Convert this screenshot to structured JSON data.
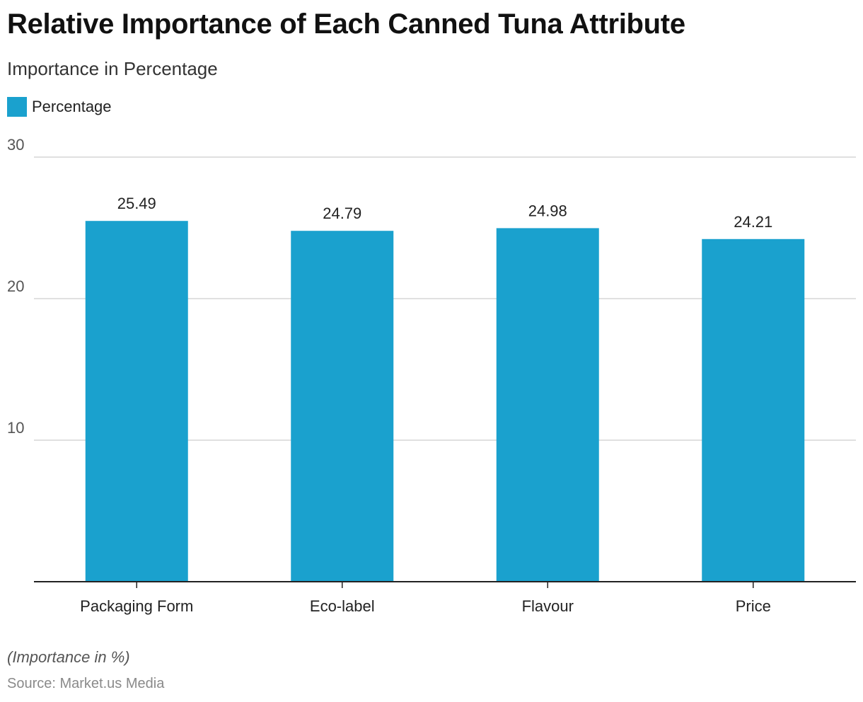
{
  "header": {
    "title": "Relative Importance of Each Canned Tuna Attribute",
    "subtitle": "Importance in Percentage"
  },
  "legend": {
    "label": "Percentage",
    "color": "#1aa1ce"
  },
  "chart_data": {
    "type": "bar",
    "categories": [
      "Packaging Form",
      "Eco-label",
      "Flavour",
      "Price"
    ],
    "series": [
      {
        "name": "Percentage",
        "values": [
          25.49,
          24.79,
          24.98,
          24.21
        ],
        "color": "#1aa1ce"
      }
    ],
    "value_labels": [
      "25.49",
      "24.79",
      "24.98",
      "24.21"
    ],
    "ylim": [
      0,
      30
    ],
    "yticks": [
      10,
      20,
      30
    ],
    "ytick_labels": [
      "10",
      "20",
      "30"
    ],
    "grid": true,
    "legend_position": "top-left"
  },
  "footer": {
    "note": "(Importance in %)",
    "source": "Source: Market.us Media"
  }
}
